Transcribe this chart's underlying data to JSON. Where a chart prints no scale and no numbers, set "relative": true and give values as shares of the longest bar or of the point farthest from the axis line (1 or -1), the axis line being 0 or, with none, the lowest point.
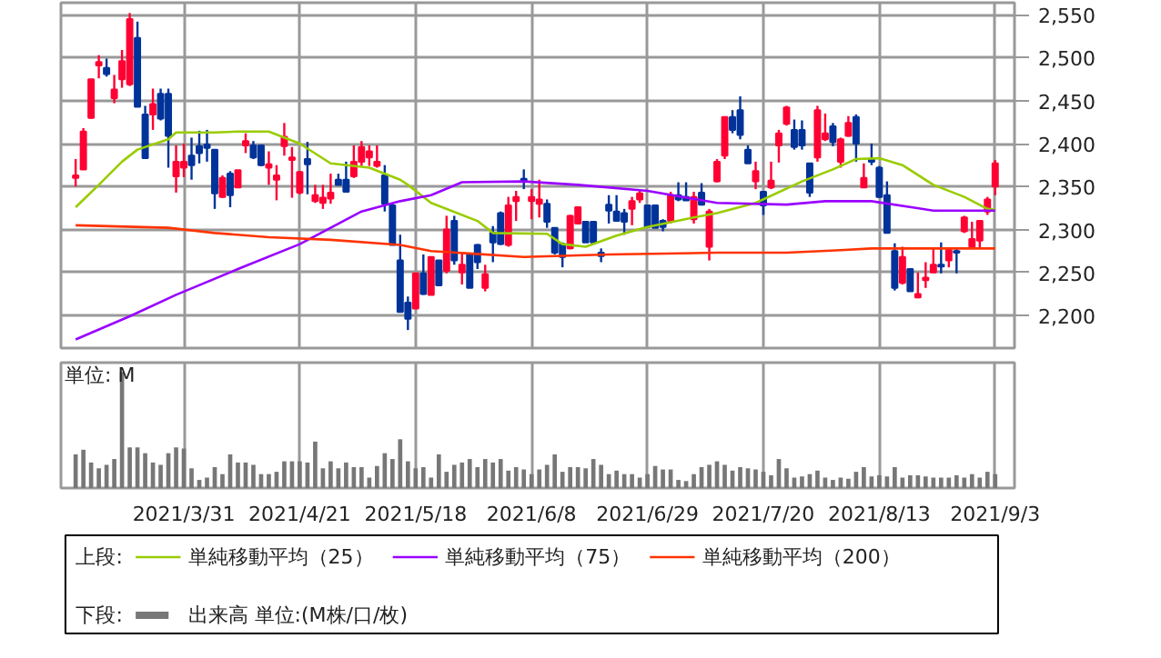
{
  "chart_data": [
    {
      "type": "candlestick",
      "legend_title": "上段:",
      "legend": "bottom",
      "grid": true,
      "tick_labels": "y",
      "categories": [
        null,
        null,
        null,
        null,
        null,
        null,
        null,
        null,
        null,
        null,
        null,
        null,
        null,
        null,
        "2021/3/31",
        null,
        null,
        null,
        null,
        null,
        null,
        null,
        null,
        null,
        null,
        null,
        null,
        null,
        null,
        "2021/4/21",
        null,
        null,
        null,
        null,
        null,
        null,
        null,
        null,
        null,
        null,
        null,
        null,
        null,
        null,
        "2021/5/18",
        null,
        null,
        null,
        null,
        null,
        null,
        null,
        null,
        null,
        null,
        null,
        null,
        null,
        null,
        "2021/6/8",
        null,
        null,
        null,
        null,
        null,
        null,
        null,
        null,
        null,
        null,
        null,
        null,
        null,
        null,
        "2021/6/29",
        null,
        null,
        null,
        null,
        null,
        null,
        null,
        null,
        null,
        null,
        null,
        null,
        null,
        null,
        "2021/7/20",
        null,
        null,
        null,
        null,
        null,
        null,
        null,
        null,
        null,
        null,
        null,
        null,
        null,
        null,
        "2021/8/13",
        null,
        null,
        null,
        null,
        null,
        null,
        null,
        null,
        null,
        null,
        null,
        null,
        null,
        null,
        "2021/9/3"
      ],
      "ylim": [
        2162,
        2564
      ],
      "yticks": [
        {
          "value": 2200,
          "label": "2,200"
        },
        {
          "value": 2250,
          "label": "2,250"
        },
        {
          "value": 2300,
          "label": "2,300"
        },
        {
          "value": 2350,
          "label": "2,350"
        },
        {
          "value": 2400,
          "label": "2,400"
        },
        {
          "value": 2450,
          "label": "2,450"
        },
        {
          "value": 2500,
          "label": "2,500"
        },
        {
          "value": 2550,
          "label": "2,550"
        }
      ],
      "ohlc": [
        [
          2360,
          2382,
          2350,
          2363
        ],
        [
          2370,
          2418,
          2370,
          2414
        ],
        [
          2430,
          2475,
          2429,
          2475
        ],
        [
          2491,
          2503,
          2476,
          2495
        ],
        [
          2488,
          2499,
          2478,
          2481
        ],
        [
          2453,
          2480,
          2447,
          2463
        ],
        [
          2475,
          2509,
          2465,
          2496
        ],
        [
          2469,
          2552,
          2467,
          2545
        ],
        [
          2523,
          2542,
          2443,
          2443
        ],
        [
          2434,
          2444,
          2383,
          2383
        ],
        [
          2434,
          2464,
          2416,
          2446
        ],
        [
          2458,
          2464,
          2427,
          2429
        ],
        [
          2458,
          2464,
          2372,
          2409
        ],
        [
          2362,
          2398,
          2343,
          2379
        ],
        [
          2372,
          2400,
          2361,
          2379
        ],
        [
          2386,
          2407,
          2358,
          2375
        ],
        [
          2397,
          2415,
          2377,
          2389
        ],
        [
          2399,
          2416,
          2379,
          2395
        ],
        [
          2393,
          2393,
          2324,
          2342
        ],
        [
          2338,
          2363,
          2337,
          2360
        ],
        [
          2365,
          2368,
          2326,
          2340
        ],
        [
          2349,
          2369,
          2349,
          2369
        ],
        [
          2398,
          2412,
          2389,
          2403
        ],
        [
          2398,
          2403,
          2382,
          2384
        ],
        [
          2398,
          2398,
          2374,
          2375
        ],
        [
          2372,
          2391,
          2352,
          2376
        ],
        [
          2358,
          2375,
          2334,
          2363
        ],
        [
          2397,
          2424,
          2386,
          2408
        ],
        [
          2381,
          2396,
          2337,
          2384
        ],
        [
          2343,
          2368,
          2341,
          2367
        ],
        [
          2382,
          2402,
          2341,
          2376
        ],
        [
          2333,
          2352,
          2331,
          2340
        ],
        [
          2331,
          2352,
          2324,
          2337
        ],
        [
          2336,
          2365,
          2330,
          2343
        ],
        [
          2358,
          2365,
          2352,
          2352
        ],
        [
          2358,
          2379,
          2344,
          2344
        ],
        [
          2362,
          2398,
          2360,
          2379
        ],
        [
          2379,
          2403,
          2374,
          2396
        ],
        [
          2384,
          2398,
          2374,
          2391
        ],
        [
          2374,
          2398,
          2372,
          2379
        ],
        [
          2363,
          2375,
          2321,
          2330
        ],
        [
          2328,
          2330,
          2282,
          2282
        ],
        [
          2264,
          2294,
          2204,
          2204
        ],
        [
          2215,
          2222,
          2183,
          2196
        ],
        [
          2208,
          2249,
          2208,
          2249
        ],
        [
          2249,
          2271,
          2224,
          2225
        ],
        [
          2224,
          2268,
          2224,
          2268
        ],
        [
          2264,
          2264,
          2235,
          2235
        ],
        [
          2252,
          2316,
          2249,
          2300
        ],
        [
          2310,
          2316,
          2259,
          2264
        ],
        [
          2250,
          2273,
          2236,
          2259
        ],
        [
          2271,
          2273,
          2232,
          2232
        ],
        [
          2282,
          2283,
          2254,
          2262
        ],
        [
          2232,
          2259,
          2228,
          2248
        ],
        [
          2296,
          2304,
          2262,
          2285
        ],
        [
          2319,
          2321,
          2282,
          2283
        ],
        [
          2282,
          2338,
          2280,
          2328
        ],
        [
          2333,
          2345,
          2310,
          2338
        ],
        [
          2359,
          2370,
          2347,
          2356
        ],
        [
          2333,
          2347,
          2312,
          2338
        ],
        [
          2330,
          2358,
          2314,
          2335
        ],
        [
          2330,
          2335,
          2302,
          2309
        ],
        [
          2302,
          2302,
          2271,
          2273
        ],
        [
          2283,
          2285,
          2256,
          2268
        ],
        [
          2278,
          2317,
          2277,
          2316
        ],
        [
          2307,
          2326,
          2307,
          2326
        ],
        [
          2309,
          2309,
          2285,
          2285
        ],
        [
          2309,
          2309,
          2285,
          2285
        ],
        [
          2273,
          2278,
          2262,
          2269
        ],
        [
          2329,
          2340,
          2307,
          2322
        ],
        [
          2321,
          2340,
          2309,
          2310
        ],
        [
          2319,
          2324,
          2294,
          2309
        ],
        [
          2324,
          2338,
          2305,
          2333
        ],
        [
          2335,
          2347,
          2331,
          2342
        ],
        [
          2328,
          2328,
          2303,
          2303
        ],
        [
          2328,
          2328,
          2302,
          2302
        ],
        [
          2310,
          2312,
          2298,
          2303
        ],
        [
          2310,
          2344,
          2307,
          2340
        ],
        [
          2340,
          2355,
          2333,
          2335
        ],
        [
          2338,
          2355,
          2334,
          2334
        ],
        [
          2312,
          2344,
          2307,
          2338
        ],
        [
          2343,
          2354,
          2328,
          2329
        ],
        [
          2280,
          2324,
          2264,
          2321
        ],
        [
          2356,
          2382,
          2355,
          2379
        ],
        [
          2386,
          2431,
          2382,
          2431
        ],
        [
          2431,
          2439,
          2412,
          2416
        ],
        [
          2439,
          2455,
          2405,
          2410
        ],
        [
          2393,
          2398,
          2377,
          2377
        ],
        [
          2356,
          2379,
          2347,
          2368
        ],
        [
          2344,
          2345,
          2317,
          2328
        ],
        [
          2349,
          2379,
          2347,
          2357
        ],
        [
          2398,
          2416,
          2378,
          2412
        ],
        [
          2423,
          2444,
          2421,
          2442
        ],
        [
          2416,
          2428,
          2393,
          2396
        ],
        [
          2416,
          2427,
          2393,
          2398
        ],
        [
          2377,
          2377,
          2338,
          2343
        ],
        [
          2384,
          2444,
          2379,
          2439
        ],
        [
          2405,
          2435,
          2403,
          2412
        ],
        [
          2420,
          2424,
          2397,
          2402
        ],
        [
          2379,
          2407,
          2372,
          2405
        ],
        [
          2409,
          2432,
          2408,
          2424
        ],
        [
          2431,
          2434,
          2379,
          2400
        ],
        [
          2349,
          2377,
          2349,
          2360
        ],
        [
          2382,
          2400,
          2375,
          2379
        ],
        [
          2372,
          2374,
          2337,
          2338
        ],
        [
          2340,
          2356,
          2296,
          2296
        ],
        [
          2275,
          2284,
          2229,
          2232
        ],
        [
          2238,
          2280,
          2236,
          2268
        ],
        [
          2254,
          2254,
          2228,
          2228
        ],
        [
          2221,
          2250,
          2220,
          2225
        ],
        [
          2241,
          2262,
          2232,
          2244
        ],
        [
          2250,
          2278,
          2250,
          2259
        ],
        [
          2259,
          2285,
          2249,
          2257
        ],
        [
          2264,
          2278,
          2256,
          2276
        ],
        [
          2275,
          2278,
          2249,
          2273
        ],
        [
          2298,
          2316,
          2296,
          2314
        ],
        [
          2280,
          2309,
          2278,
          2289
        ],
        [
          2287,
          2310,
          2278,
          2310
        ],
        [
          2321,
          2338,
          2317,
          2335
        ],
        [
          2350,
          2381,
          2340,
          2377
        ]
      ],
      "series": [
        {
          "type": "line",
          "name": "単純移動平均（25）",
          "color": "#99cc00",
          "values": [
            2326,
            null,
            null,
            2352,
            null,
            null,
            2379,
            null,
            2393,
            null,
            null,
            null,
            2405,
            2413,
            null,
            null,
            null,
            null,
            2413,
            null,
            null,
            2414,
            null,
            null,
            null,
            2414,
            null,
            null,
            null,
            2400,
            null,
            null,
            null,
            2377,
            null,
            null,
            null,
            null,
            2372,
            null,
            null,
            null,
            2358,
            2352,
            null,
            null,
            2331,
            null,
            null,
            null,
            null,
            null,
            2310,
            null,
            2296,
            null,
            null,
            null,
            null,
            null,
            null,
            2295,
            null,
            2283,
            null,
            null,
            2280,
            null,
            null,
            null,
            2293,
            null,
            null,
            null,
            2303,
            null,
            null,
            null,
            null,
            null,
            2314,
            null,
            null,
            2319,
            null,
            null,
            null,
            null,
            2331,
            null,
            null,
            null,
            null,
            null,
            2356,
            null,
            null,
            null,
            2370,
            null,
            null,
            2382,
            null,
            null,
            2383,
            null,
            null,
            2375,
            null,
            null,
            null,
            2352,
            null,
            null,
            null,
            2338,
            null,
            null,
            2324,
            2323
          ]
        },
        {
          "type": "line",
          "name": "単純移動平均（75）",
          "color": "#9900ff",
          "values": [
            2172,
            null,
            null,
            null,
            null,
            null,
            null,
            2199,
            null,
            null,
            null,
            null,
            null,
            2224,
            null,
            null,
            null,
            null,
            null,
            null,
            null,
            2254,
            null,
            null,
            null,
            null,
            null,
            null,
            null,
            2283,
            null,
            null,
            null,
            null,
            null,
            null,
            null,
            2321,
            null,
            null,
            null,
            null,
            2333,
            null,
            null,
            null,
            2340,
            null,
            null,
            null,
            2355,
            null,
            null,
            null,
            null,
            null,
            null,
            null,
            2356,
            null,
            null,
            null,
            null,
            null,
            null,
            2352,
            null,
            null,
            null,
            null,
            null,
            null,
            null,
            null,
            2345,
            null,
            null,
            null,
            null,
            null,
            null,
            null,
            null,
            2331,
            null,
            null,
            null,
            null,
            null,
            null,
            null,
            null,
            2329,
            null,
            null,
            null,
            null,
            2333,
            null,
            null,
            null,
            null,
            null,
            2333,
            null,
            null,
            null,
            null,
            null,
            null,
            null,
            2322,
            null,
            null,
            null,
            null,
            null,
            null,
            null,
            2322
          ]
        },
        {
          "type": "line",
          "name": "単純移動平均（200）",
          "color": "#ff3300",
          "values": [
            2305,
            null,
            null,
            null,
            null,
            null,
            null,
            null,
            null,
            null,
            null,
            null,
            2302,
            null,
            null,
            null,
            null,
            null,
            2296,
            null,
            null,
            null,
            null,
            null,
            null,
            2291,
            null,
            null,
            null,
            null,
            null,
            null,
            null,
            2288,
            null,
            null,
            null,
            null,
            null,
            null,
            null,
            null,
            2282,
            null,
            null,
            null,
            2275,
            null,
            null,
            null,
            null,
            null,
            null,
            null,
            null,
            null,
            null,
            null,
            2268,
            null,
            null,
            null,
            null,
            null,
            null,
            null,
            null,
            null,
            null,
            2271,
            null,
            null,
            null,
            null,
            null,
            null,
            null,
            null,
            null,
            null,
            null,
            null,
            null,
            2273,
            null,
            null,
            null,
            null,
            null,
            null,
            null,
            null,
            2273,
            null,
            null,
            null,
            null,
            null,
            null,
            2276,
            null,
            null,
            null,
            2278,
            null,
            null,
            null,
            null,
            null,
            null,
            null,
            null,
            null,
            null,
            null,
            null,
            null,
            null,
            null,
            2278
          ]
        }
      ]
    },
    {
      "type": "bar",
      "relative": true,
      "legend_title": "下段:",
      "legend": "bottom",
      "grid": "x",
      "tick_labels": "x",
      "annotations": [
        "単位: M"
      ],
      "categories": [
        null,
        null,
        null,
        null,
        null,
        null,
        null,
        null,
        null,
        null,
        null,
        null,
        null,
        null,
        "2021/3/31",
        null,
        null,
        null,
        null,
        null,
        null,
        null,
        null,
        null,
        null,
        null,
        null,
        null,
        null,
        "2021/4/21",
        null,
        null,
        null,
        null,
        null,
        null,
        null,
        null,
        null,
        null,
        null,
        null,
        null,
        null,
        "2021/5/18",
        null,
        null,
        null,
        null,
        null,
        null,
        null,
        null,
        null,
        null,
        null,
        null,
        null,
        null,
        "2021/6/8",
        null,
        null,
        null,
        null,
        null,
        null,
        null,
        null,
        null,
        null,
        null,
        null,
        null,
        null,
        "2021/6/29",
        null,
        null,
        null,
        null,
        null,
        null,
        null,
        null,
        null,
        null,
        null,
        null,
        null,
        null,
        "2021/7/20",
        null,
        null,
        null,
        null,
        null,
        null,
        null,
        null,
        null,
        null,
        null,
        null,
        null,
        null,
        "2021/8/13",
        null,
        null,
        null,
        null,
        null,
        null,
        null,
        null,
        null,
        null,
        null,
        null,
        null,
        null,
        "2021/9/3"
      ],
      "series": [
        {
          "name": "出来高 単位:(M株/口/枚)",
          "color": "#777777",
          "values": [
            0.29,
            0.33,
            0.22,
            0.17,
            0.2,
            0.25,
            1,
            0.35,
            0.35,
            0.3,
            0.22,
            0.2,
            0.3,
            0.35,
            0.34,
            0.17,
            0.07,
            0.09,
            0.18,
            0.12,
            0.29,
            0.22,
            0.22,
            0.2,
            0.12,
            0.12,
            0.14,
            0.23,
            0.23,
            0.23,
            0.22,
            0.4,
            0.17,
            0.23,
            0.17,
            0.22,
            0.18,
            0.18,
            0.09,
            0.19,
            0.3,
            0.25,
            0.42,
            0.23,
            0.17,
            0.18,
            0.09,
            0.29,
            0.14,
            0.2,
            0.22,
            0.25,
            0.18,
            0.25,
            0.22,
            0.25,
            0.15,
            0.18,
            0.16,
            0.12,
            0.16,
            0.2,
            0.29,
            0.14,
            0.18,
            0.18,
            0.17,
            0.25,
            0.2,
            0.12,
            0.15,
            0.12,
            0.12,
            0.09,
            0.12,
            0.19,
            0.16,
            0.16,
            0.07,
            0.06,
            0.12,
            0.18,
            0.2,
            0.23,
            0.2,
            0.15,
            0.18,
            0.17,
            0.16,
            0.14,
            0.11,
            0.25,
            0.17,
            0.09,
            0.1,
            0.12,
            0.15,
            0.09,
            0.07,
            0.09,
            0.08,
            0.14,
            0.18,
            0.1,
            0.11,
            0.1,
            0.18,
            0.09,
            0.11,
            0.11,
            0.1,
            0.09,
            0.09,
            0.09,
            0.11,
            0.09,
            0.12,
            0.09,
            0.14,
            0.12
          ]
        }
      ]
    }
  ]
}
